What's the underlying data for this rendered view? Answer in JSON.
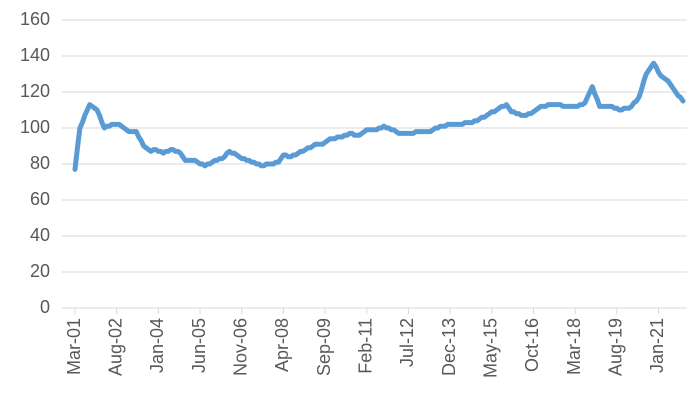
{
  "chart_data": {
    "type": "line",
    "categories": [
      "Mar-01",
      null,
      null,
      null,
      null,
      null,
      null,
      null,
      null,
      null,
      null,
      null,
      null,
      null,
      null,
      null,
      null,
      "Aug-02",
      null,
      null,
      null,
      null,
      null,
      null,
      null,
      null,
      null,
      null,
      null,
      null,
      null,
      null,
      null,
      null,
      "Jan-04",
      null,
      null,
      null,
      null,
      null,
      null,
      null,
      null,
      null,
      null,
      null,
      null,
      null,
      null,
      null,
      null,
      "Jun-05",
      null,
      null,
      null,
      null,
      null,
      null,
      null,
      null,
      null,
      null,
      null,
      null,
      null,
      null,
      null,
      null,
      "Nov-06",
      null,
      null,
      null,
      null,
      null,
      null,
      null,
      null,
      null,
      null,
      null,
      null,
      null,
      null,
      null,
      null,
      "Apr-08",
      null,
      null,
      null,
      null,
      null,
      null,
      null,
      null,
      null,
      null,
      null,
      null,
      null,
      null,
      null,
      null,
      "Sep-09",
      null,
      null,
      null,
      null,
      null,
      null,
      null,
      null,
      null,
      null,
      null,
      null,
      null,
      null,
      null,
      null,
      "Feb-11",
      null,
      null,
      null,
      null,
      null,
      null,
      null,
      null,
      null,
      null,
      null,
      null,
      null,
      null,
      null,
      null,
      "Jul-12",
      null,
      null,
      null,
      null,
      null,
      null,
      null,
      null,
      null,
      null,
      null,
      null,
      null,
      null,
      null,
      null,
      "Dec-13",
      null,
      null,
      null,
      null,
      null,
      null,
      null,
      null,
      null,
      null,
      null,
      null,
      null,
      null,
      null,
      null,
      "May-15",
      null,
      null,
      null,
      null,
      null,
      null,
      null,
      null,
      null,
      null,
      null,
      null,
      null,
      null,
      null,
      null,
      "Oct-16",
      null,
      null,
      null,
      null,
      null,
      null,
      null,
      null,
      null,
      null,
      null,
      null,
      null,
      null,
      null,
      null,
      "Mar-18",
      null,
      null,
      null,
      null,
      null,
      null,
      null,
      null,
      null,
      null,
      null,
      null,
      null,
      null,
      null,
      null,
      "Aug-19",
      null,
      null,
      null,
      null,
      null,
      null,
      null,
      null,
      null,
      null,
      null,
      null,
      null,
      null,
      null,
      null,
      "Jan-21",
      null,
      null,
      null,
      null,
      null,
      null,
      null,
      null,
      null,
      null
    ],
    "values": [
      77,
      89,
      100,
      103,
      107,
      110,
      113,
      112,
      111,
      110,
      107,
      103,
      100,
      101,
      101,
      102,
      102,
      102,
      102,
      101,
      100,
      99,
      98,
      98,
      98,
      98,
      95,
      93,
      90,
      89,
      88,
      87,
      88,
      88,
      87,
      87,
      86,
      87,
      87,
      88,
      88,
      87,
      87,
      86,
      84,
      82,
      82,
      82,
      82,
      82,
      81,
      80,
      80,
      79,
      80,
      80,
      81,
      82,
      82,
      83,
      83,
      84,
      86,
      87,
      86,
      86,
      85,
      84,
      83,
      83,
      82,
      82,
      81,
      81,
      80,
      80,
      79,
      79,
      80,
      80,
      80,
      80,
      81,
      81,
      83,
      85,
      85,
      84,
      84,
      85,
      85,
      86,
      87,
      87,
      88,
      89,
      89,
      90,
      91,
      91,
      91,
      91,
      92,
      93,
      94,
      94,
      94,
      95,
      95,
      95,
      96,
      96,
      97,
      97,
      96,
      96,
      96,
      97,
      98,
      99,
      99,
      99,
      99,
      99,
      100,
      100,
      101,
      100,
      100,
      99,
      99,
      98,
      97,
      97,
      97,
      97,
      97,
      97,
      97,
      98,
      98,
      98,
      98,
      98,
      98,
      98,
      99,
      100,
      100,
      101,
      101,
      101,
      102,
      102,
      102,
      102,
      102,
      102,
      102,
      103,
      103,
      103,
      103,
      104,
      104,
      105,
      106,
      106,
      107,
      108,
      109,
      109,
      110,
      111,
      112,
      112,
      113,
      111,
      109,
      109,
      108,
      108,
      107,
      107,
      107,
      108,
      108,
      109,
      110,
      111,
      112,
      112,
      112,
      113,
      113,
      113,
      113,
      113,
      113,
      112,
      112,
      112,
      112,
      112,
      112,
      112,
      113,
      113,
      114,
      117,
      120,
      123,
      119,
      116,
      112,
      112,
      112,
      112,
      112,
      112,
      111,
      111,
      110,
      110,
      111,
      111,
      111,
      112,
      114,
      115,
      117,
      121,
      126,
      130,
      132,
      134,
      136,
      134,
      131,
      129,
      128,
      127,
      126,
      124,
      122,
      120,
      118,
      117,
      115
    ],
    "color": "#5b9bd5",
    "ylim": [
      0,
      160
    ],
    "yticks": [
      0,
      20,
      40,
      60,
      80,
      100,
      120,
      140,
      160
    ],
    "grid": true
  }
}
